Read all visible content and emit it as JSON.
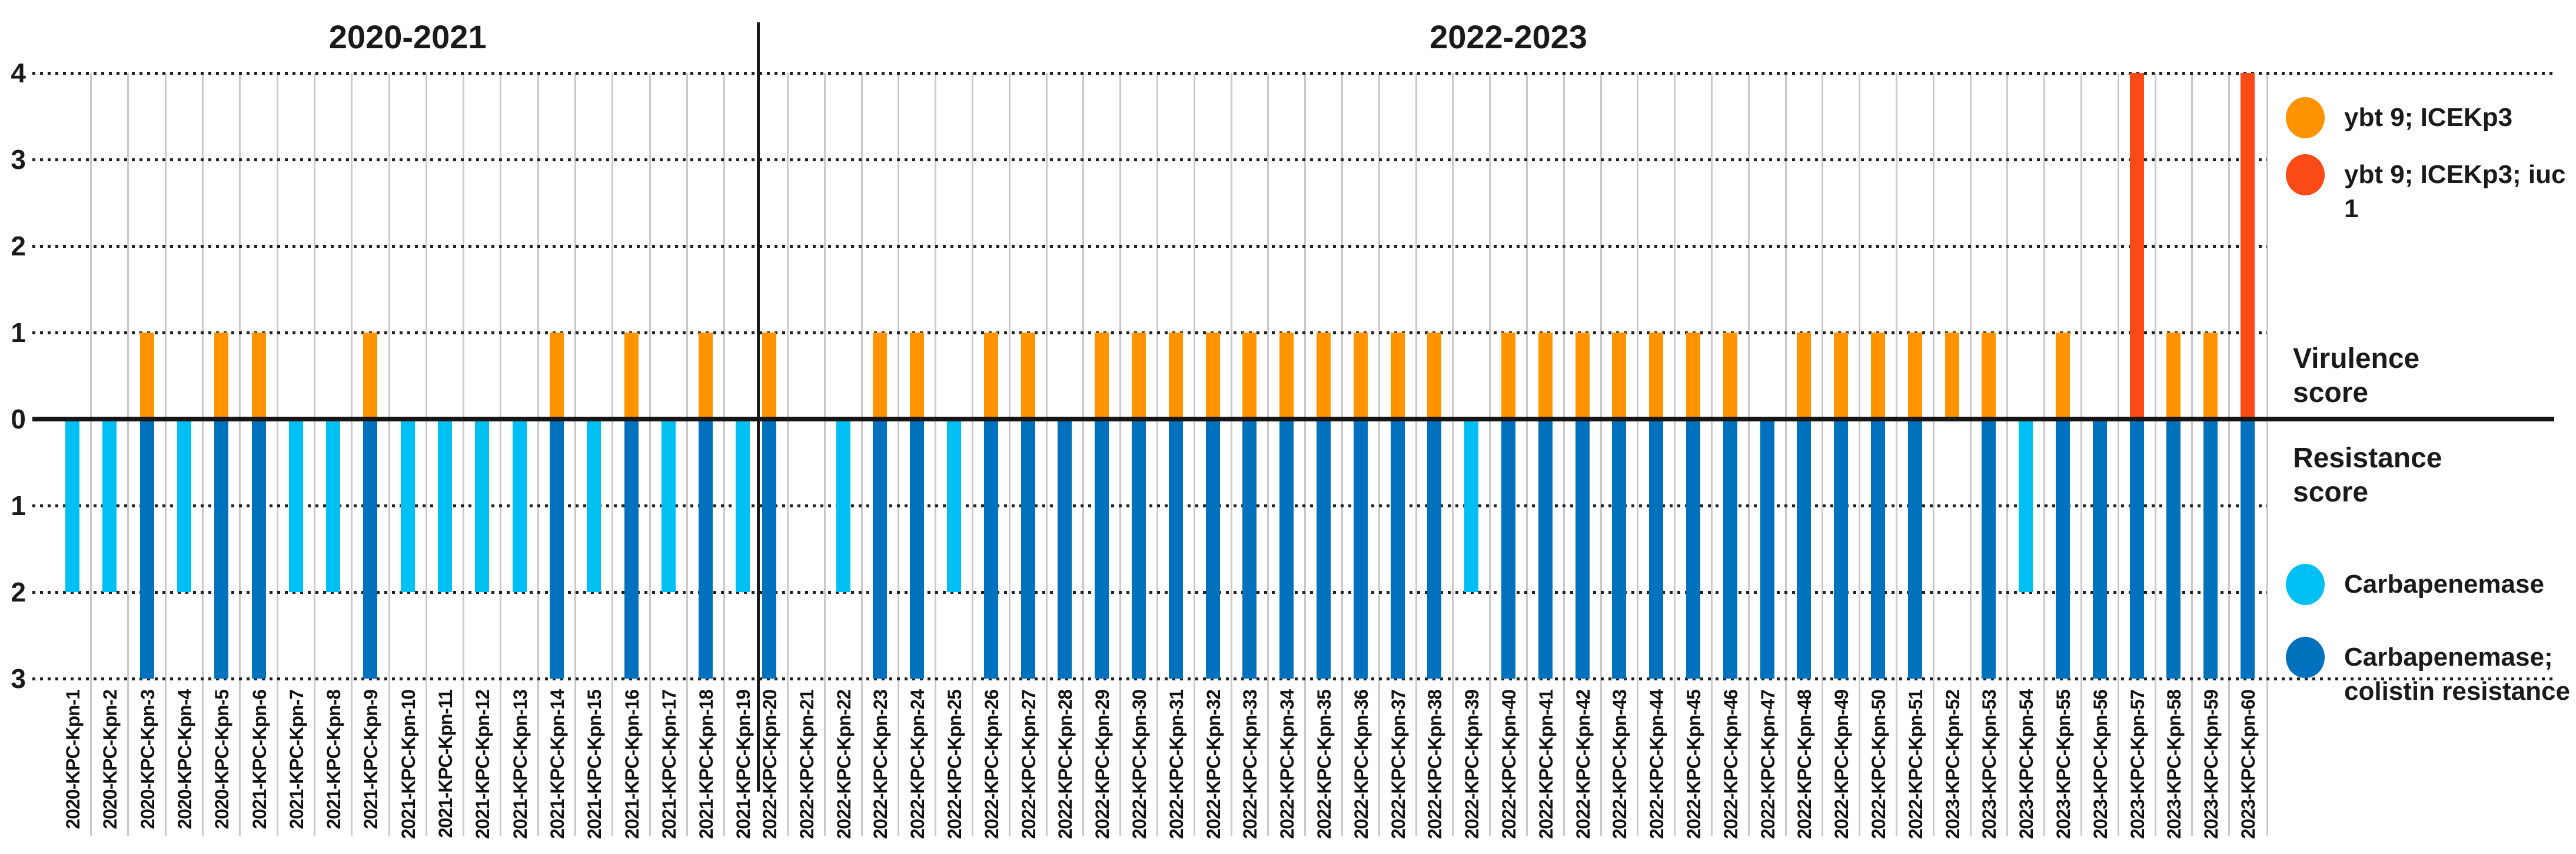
{
  "chart_data": {
    "type": "bar",
    "orientation": "diverging-vertical",
    "y_axis": {
      "up_label": "Virulence\nscore",
      "up_ticks": [
        "4",
        "3",
        "2",
        "1"
      ],
      "up_tick_values": [
        4,
        3,
        2,
        1
      ],
      "zero_tick": "0",
      "down_label": "Resistance\nscore",
      "down_ticks": [
        "1",
        "2",
        "3"
      ],
      "down_tick_values": [
        1,
        2,
        3
      ],
      "ylim_up": 4,
      "ylim_down": 3,
      "grid": "dotted horizontal, light vertical separators"
    },
    "colors": {
      "virulence_1": "#ff9400",
      "virulence_4": "#fb4a15",
      "resistance_2": "#00bff3",
      "resistance_3": "#0071bc",
      "axis": "#1a1a1a"
    },
    "legend_virulence": [
      {
        "label": "ybt 9;  ICEKp3",
        "color": "#ff9400",
        "score": 1
      },
      {
        "label": "ybt 9;  ICEKp3; iuc 1",
        "color": "#fb4a15",
        "score": 4
      }
    ],
    "legend_resistance": [
      {
        "label": "Carbapenemase",
        "color": "#00bff3",
        "score": 2
      },
      {
        "label": "Carbapenemase;\ncolistin resistance",
        "color": "#0071bc",
        "score": 3
      }
    ],
    "groups": [
      {
        "title": "2020-2021",
        "isolates": [
          {
            "id": "2020-KPC-Kpn-1",
            "virulence": 0,
            "resistance": 2
          },
          {
            "id": "2020-KPC-Kpn-2",
            "virulence": 0,
            "resistance": 2
          },
          {
            "id": "2020-KPC-Kpn-3",
            "virulence": 1,
            "resistance": 3
          },
          {
            "id": "2020-KPC-Kpn-4",
            "virulence": 0,
            "resistance": 2
          },
          {
            "id": "2020-KPC-Kpn-5",
            "virulence": 1,
            "resistance": 3
          },
          {
            "id": "2021-KPC-Kpn-6",
            "virulence": 1,
            "resistance": 3
          },
          {
            "id": "2021-KPC-Kpn-7",
            "virulence": 0,
            "resistance": 2
          },
          {
            "id": "2021-KPC-Kpn-8",
            "virulence": 0,
            "resistance": 2
          },
          {
            "id": "2021-KPC-Kpn-9",
            "virulence": 1,
            "resistance": 3
          },
          {
            "id": "2021-KPC-Kpn-10",
            "virulence": 0,
            "resistance": 2
          },
          {
            "id": "2021-KPC-Kpn-11",
            "virulence": 0,
            "resistance": 2
          },
          {
            "id": "2021-KPC-Kpn-12",
            "virulence": 0,
            "resistance": 2
          },
          {
            "id": "2021-KPC-Kpn-13",
            "virulence": 0,
            "resistance": 2
          },
          {
            "id": "2021-KPC-Kpn-14",
            "virulence": 1,
            "resistance": 3
          },
          {
            "id": "2021-KPC-Kpn-15",
            "virulence": 0,
            "resistance": 2
          },
          {
            "id": "2021-KPC-Kpn-16",
            "virulence": 1,
            "resistance": 3
          },
          {
            "id": "2021-KPC-Kpn-17",
            "virulence": 0,
            "resistance": 2
          },
          {
            "id": "2021-KPC-Kpn-18",
            "virulence": 1,
            "resistance": 3
          },
          {
            "id": "2021-KPC-Kpn-19",
            "virulence": 0,
            "resistance": 2
          }
        ]
      },
      {
        "title": "2022-2023",
        "isolates": [
          {
            "id": "2022-KPC-Kpn-20",
            "virulence": 1,
            "resistance": 3
          },
          {
            "id": "2022-KPC-Kpn-21",
            "virulence": 0,
            "resistance": 0
          },
          {
            "id": "2022-KPC-Kpn-22",
            "virulence": 0,
            "resistance": 2
          },
          {
            "id": "2022-KPC-Kpn-23",
            "virulence": 1,
            "resistance": 3
          },
          {
            "id": "2022-KPC-Kpn-24",
            "virulence": 1,
            "resistance": 3
          },
          {
            "id": "2022-KPC-Kpn-25",
            "virulence": 0,
            "resistance": 2
          },
          {
            "id": "2022-KPC-Kpn-26",
            "virulence": 1,
            "resistance": 3
          },
          {
            "id": "2022-KPC-Kpn-27",
            "virulence": 1,
            "resistance": 3
          },
          {
            "id": "2022-KPC-Kpn-28",
            "virulence": 0,
            "resistance": 3
          },
          {
            "id": "2022-KPC-Kpn-29",
            "virulence": 1,
            "resistance": 3
          },
          {
            "id": "2022-KPC-Kpn-30",
            "virulence": 1,
            "resistance": 3
          },
          {
            "id": "2022-KPC-Kpn-31",
            "virulence": 1,
            "resistance": 3
          },
          {
            "id": "2022-KPC-Kpn-32",
            "virulence": 1,
            "resistance": 3
          },
          {
            "id": "2022-KPC-Kpn-33",
            "virulence": 1,
            "resistance": 3
          },
          {
            "id": "2022-KPC-Kpn-34",
            "virulence": 1,
            "resistance": 3
          },
          {
            "id": "2022-KPC-Kpn-35",
            "virulence": 1,
            "resistance": 3
          },
          {
            "id": "2022-KPC-Kpn-36",
            "virulence": 1,
            "resistance": 3
          },
          {
            "id": "2022-KPC-Kpn-37",
            "virulence": 1,
            "resistance": 3
          },
          {
            "id": "2022-KPC-Kpn-38",
            "virulence": 1,
            "resistance": 3
          },
          {
            "id": "2022-KPC-Kpn-39",
            "virulence": 0,
            "resistance": 2
          },
          {
            "id": "2022-KPC-Kpn-40",
            "virulence": 1,
            "resistance": 3
          },
          {
            "id": "2022-KPC-Kpn-41",
            "virulence": 1,
            "resistance": 3
          },
          {
            "id": "2022-KPC-Kpn-42",
            "virulence": 1,
            "resistance": 3
          },
          {
            "id": "2022-KPC-Kpn-43",
            "virulence": 1,
            "resistance": 3
          },
          {
            "id": "2022-KPC-Kpn-44",
            "virulence": 1,
            "resistance": 3
          },
          {
            "id": "2022-KPC-Kpn-45",
            "virulence": 1,
            "resistance": 3
          },
          {
            "id": "2022-KPC-Kpn-46",
            "virulence": 1,
            "resistance": 3
          },
          {
            "id": "2022-KPC-Kpn-47",
            "virulence": 0,
            "resistance": 3
          },
          {
            "id": "2022-KPC-Kpn-48",
            "virulence": 1,
            "resistance": 3
          },
          {
            "id": "2022-KPC-Kpn-49",
            "virulence": 1,
            "resistance": 3
          },
          {
            "id": "2022-KPC-Kpn-50",
            "virulence": 1,
            "resistance": 3
          },
          {
            "id": "2022-KPC-Kpn-51",
            "virulence": 1,
            "resistance": 3
          },
          {
            "id": "2023-KPC-Kpn-52",
            "virulence": 1,
            "resistance": 0
          },
          {
            "id": "2023-KPC-Kpn-53",
            "virulence": 1,
            "resistance": 3
          },
          {
            "id": "2023-KPC-Kpn-54",
            "virulence": 0,
            "resistance": 2
          },
          {
            "id": "2023-KPC-Kpn-55",
            "virulence": 1,
            "resistance": 3
          },
          {
            "id": "2023-KPC-Kpn-56",
            "virulence": 0,
            "resistance": 3
          },
          {
            "id": "2023-KPC-Kpn-57",
            "virulence": 4,
            "resistance": 3
          },
          {
            "id": "2023-KPC-Kpn-58",
            "virulence": 1,
            "resistance": 3
          },
          {
            "id": "2023-KPC-Kpn-59",
            "virulence": 1,
            "resistance": 3
          },
          {
            "id": "2023-KPC-Kpn-60",
            "virulence": 4,
            "resistance": 3
          }
        ]
      }
    ]
  }
}
